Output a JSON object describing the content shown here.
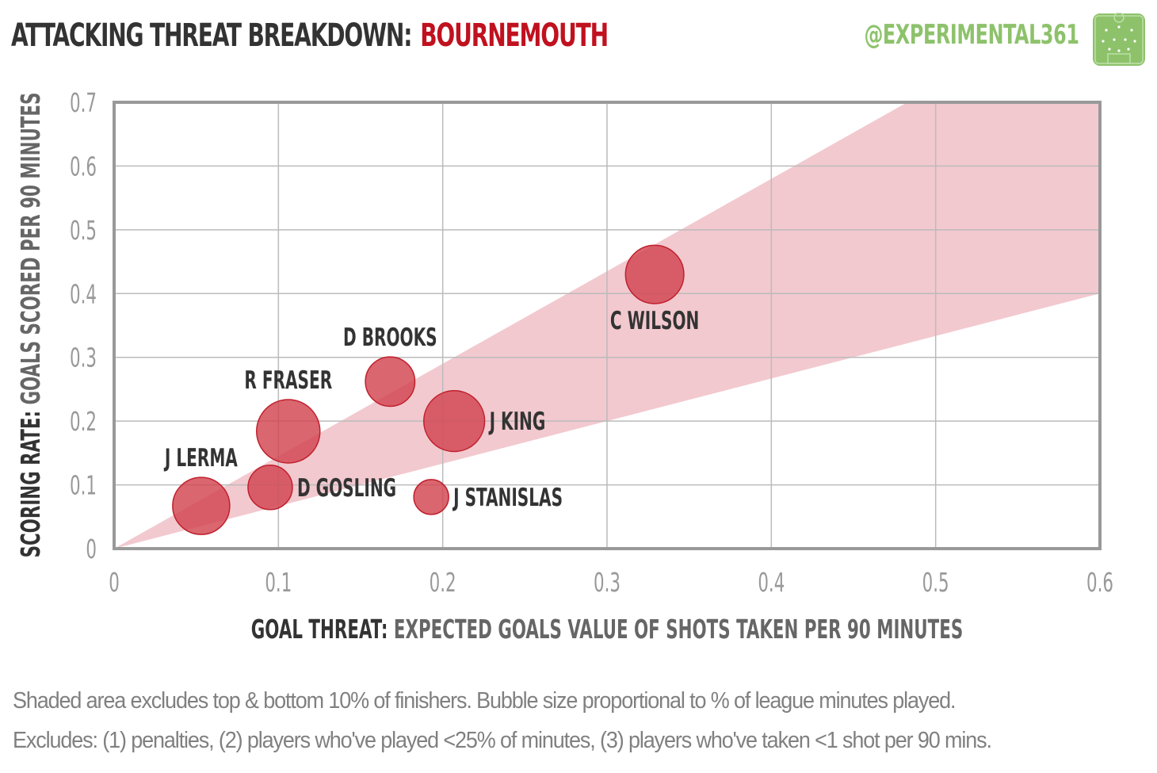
{
  "header": {
    "title_prefix": "ATTACKING THREAT BREAKDOWN:",
    "title_team": "BOURNEMOUTH",
    "handle": "@EXPERIMENTAL361"
  },
  "footer": {
    "line1": "Shaded area excludes top & bottom 10% of finishers. Bubble size proportional to % of league minutes played.",
    "line2": "Excludes: (1) penalties, (2) players who've played <25% of minutes, (3) players who've taken <1 shot per 90 mins."
  },
  "colors": {
    "title_dark": "#333333",
    "accent_red": "#c0111f",
    "handle_green": "#8dc26b",
    "bubble_fill": "#d2444f",
    "band_fill": "#f2c9cf",
    "grid": "#bbbbbb",
    "frame": "#999999",
    "axis_text": "#999999"
  },
  "chart_data": {
    "type": "scatter",
    "subtype": "bubble",
    "xlabel_bold": "GOAL THREAT:",
    "xlabel_rest": "EXPECTED GOALS VALUE OF SHOTS TAKEN PER 90 MINUTES",
    "ylabel_bold": "SCORING RATE:",
    "ylabel_rest": "GOALS SCORED PER 90 MINUTES",
    "xlim": [
      0,
      0.6
    ],
    "ylim": [
      0,
      0.7
    ],
    "x_ticks": [
      0,
      0.1,
      0.2,
      0.3,
      0.4,
      0.5,
      0.6
    ],
    "x_tick_labels": [
      "0",
      "0.1",
      "0.2",
      "0.3",
      "0.4",
      "0.5",
      "0.6"
    ],
    "y_ticks": [
      0,
      0.1,
      0.2,
      0.3,
      0.4,
      0.5,
      0.6,
      0.7
    ],
    "y_tick_labels": [
      "0",
      "0.1",
      "0.2",
      "0.3",
      "0.4",
      "0.5",
      "0.6",
      "0.7"
    ],
    "grid": true,
    "band": {
      "lower_slope": 0.667,
      "upper_slope": 1.45
    },
    "points": [
      {
        "name": "C WILSON",
        "x": 0.329,
        "y": 0.43,
        "size": 0.92,
        "label_pos": "below"
      },
      {
        "name": "D BROOKS",
        "x": 0.168,
        "y": 0.262,
        "size": 0.78,
        "label_pos": "above"
      },
      {
        "name": "R FRASER",
        "x": 0.106,
        "y": 0.184,
        "size": 1.0,
        "label_pos": "above"
      },
      {
        "name": "J KING",
        "x": 0.207,
        "y": 0.2,
        "size": 0.96,
        "label_pos": "right"
      },
      {
        "name": "J LERMA",
        "x": 0.053,
        "y": 0.067,
        "size": 0.9,
        "label_pos": "above"
      },
      {
        "name": "D GOSLING",
        "x": 0.095,
        "y": 0.096,
        "size": 0.7,
        "label_pos": "right"
      },
      {
        "name": "J STANISLAS",
        "x": 0.193,
        "y": 0.081,
        "size": 0.55,
        "label_pos": "right"
      }
    ]
  }
}
